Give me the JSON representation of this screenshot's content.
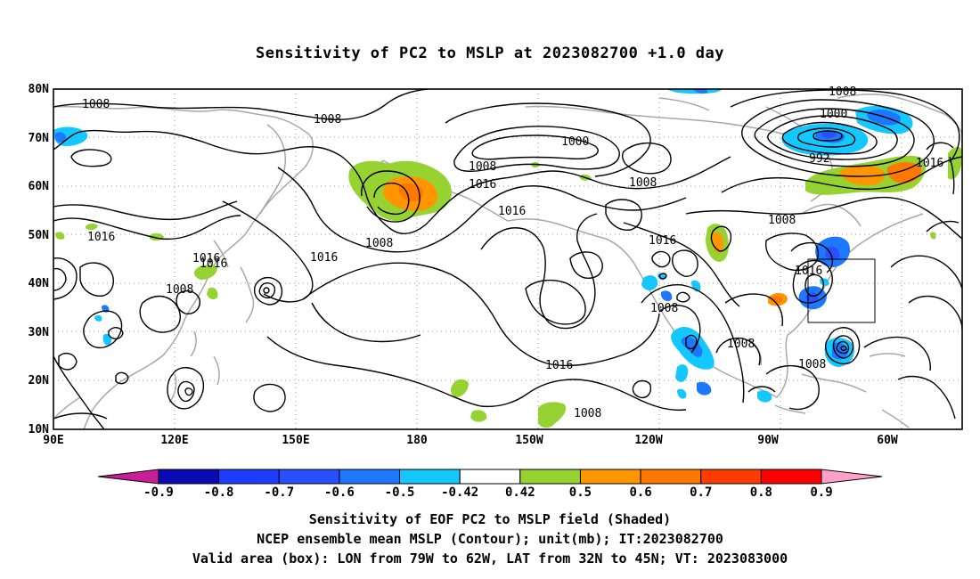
{
  "title": "Sensitivity of PC2 to MSLP at 2023082700 +1.0 day",
  "axes": {
    "lat_labels": [
      "80N",
      "70N",
      "60N",
      "50N",
      "40N",
      "30N",
      "20N",
      "10N"
    ],
    "lon_labels": [
      "90E",
      "120E",
      "150E",
      "180",
      "150W",
      "120W",
      "90W",
      "60W"
    ]
  },
  "contour_labels": [
    "1008",
    "1008",
    "1016",
    "1000",
    "1008",
    "1016",
    "1008",
    "1016",
    "1008",
    "1000",
    "992",
    "1016",
    "1016",
    "1008",
    "1016",
    "1016",
    "1008",
    "1008",
    "1008",
    "1016",
    "1016",
    "1008",
    "1008",
    "1016",
    "1008",
    "1008"
  ],
  "colorbar": {
    "labels": [
      "-0.9",
      "-0.8",
      "-0.7",
      "-0.6",
      "-0.5",
      "-0.42",
      "0.42",
      "0.5",
      "0.6",
      "0.7",
      "0.8",
      "0.9"
    ],
    "colors": [
      "#c81e96",
      "#0a0ab4",
      "#1e3cff",
      "#2850ff",
      "#1e78ff",
      "#14c8ff",
      "#ffffff",
      "#96d232",
      "#ff9600",
      "#ff7800",
      "#ff3c00",
      "#ff0000",
      "#ffa0c8"
    ]
  },
  "caption": {
    "line1": "Sensitivity of EOF PC2 to MSLP field (Shaded)",
    "line2": "NCEP ensemble mean MSLP (Contour); unit(mb); IT:2023082700",
    "line3": "Valid area (box): LON from 79W to 62W, LAT from 32N to 45N; VT: 2023083000"
  }
}
